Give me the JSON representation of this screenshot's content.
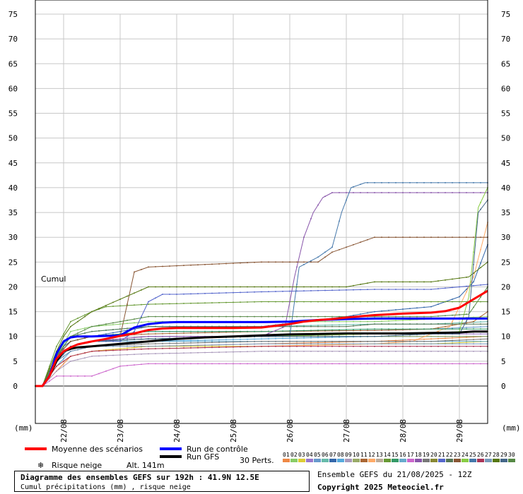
{
  "chart_data": {
    "type": "line",
    "title": "Diagramme des ensembles GEFS sur 192h : 41.9N 12.5E",
    "subtitle": "Cumul précipitations (mm) , risque neige",
    "axis_caption": "Cumul",
    "ylabel": "(mm)",
    "ylim": [
      0,
      75
    ],
    "yticks": [
      0,
      5,
      10,
      15,
      20,
      25,
      30,
      35,
      40,
      45,
      50,
      55,
      60,
      65,
      70,
      75
    ],
    "xrange_hours": [
      0,
      192
    ],
    "xticks": [
      {
        "label": "22/08",
        "hour": 12
      },
      {
        "label": "23/08",
        "hour": 36
      },
      {
        "label": "24/08",
        "hour": 60
      },
      {
        "label": "25/08",
        "hour": 84
      },
      {
        "label": "26/08",
        "hour": 108
      },
      {
        "label": "27/08",
        "hour": 132
      },
      {
        "label": "28/08",
        "hour": 156
      },
      {
        "label": "29/08",
        "hour": 180
      }
    ],
    "grid": true,
    "legend": {
      "mean": "Moyenne des scénarios",
      "control": "Run de contrôle",
      "gfs": "Run GFS",
      "snow": "Risque neige",
      "altitude": "Alt. 141m",
      "perts": "30 Perts."
    },
    "mean_color": "#ff0000",
    "control_color": "#0000ff",
    "gfs_color": "#000000",
    "series": [
      {
        "name": "Moyenne des scénarios",
        "x": [
          0,
          3,
          6,
          9,
          12,
          15,
          18,
          24,
          30,
          36,
          42,
          48,
          54,
          60,
          72,
          84,
          96,
          108,
          114,
          120,
          126,
          132,
          144,
          156,
          168,
          174,
          180,
          186,
          192
        ],
        "values": [
          0,
          0,
          2,
          5.5,
          7,
          7.8,
          8.4,
          9,
          9.5,
          10.1,
          10.6,
          11.3,
          11.6,
          11.7,
          11.7,
          11.7,
          11.8,
          12.5,
          13,
          13.3,
          13.5,
          13.8,
          14.3,
          14.6,
          14.8,
          15.1,
          15.8,
          17.5,
          19.2
        ]
      },
      {
        "name": "Run de contrôle",
        "x": [
          0,
          3,
          6,
          9,
          12,
          15,
          18,
          24,
          36,
          42,
          48,
          54,
          60,
          72,
          84,
          96,
          108,
          120,
          132,
          144,
          156,
          168,
          180,
          192
        ],
        "values": [
          0,
          0,
          2,
          6.5,
          9,
          9.8,
          10,
          10,
          10.2,
          11.8,
          12.5,
          12.8,
          12.9,
          12.9,
          12.9,
          12.9,
          13,
          13.3,
          13.5,
          13.6,
          13.6,
          13.6,
          13.6,
          13.6
        ]
      },
      {
        "name": "Run GFS",
        "x": [
          0,
          3,
          6,
          9,
          12,
          15,
          18,
          24,
          36,
          48,
          60,
          72,
          84,
          96,
          108,
          120,
          132,
          144,
          156,
          168,
          180,
          186,
          192
        ],
        "values": [
          0,
          0,
          2,
          5,
          7,
          7.5,
          7.8,
          8,
          8.5,
          9,
          9.5,
          9.8,
          10,
          10.2,
          10.4,
          10.5,
          10.6,
          10.6,
          10.6,
          10.7,
          10.8,
          11,
          11
        ]
      },
      {
        "color": "#ee8844",
        "x": [
          0,
          3,
          9,
          15,
          24,
          48,
          96,
          144,
          168,
          192
        ],
        "values": [
          0,
          0,
          3,
          6,
          7,
          8,
          8.5,
          9,
          9.5,
          10
        ]
      },
      {
        "color": "#88cc66",
        "x": [
          0,
          3,
          9,
          15,
          24,
          48,
          96,
          144,
          168,
          192
        ],
        "values": [
          0,
          0,
          6,
          11,
          12,
          13,
          13,
          13,
          13.5,
          14
        ]
      },
      {
        "color": "#ddcc33",
        "x": [
          0,
          3,
          9,
          15,
          24,
          48,
          96,
          144,
          168,
          192
        ],
        "values": [
          0,
          0,
          4,
          6,
          7,
          8,
          8,
          8.5,
          8.5,
          9
        ]
      },
      {
        "color": "#9977cc",
        "x": [
          0,
          3,
          9,
          15,
          24,
          48,
          96,
          144,
          168,
          192
        ],
        "values": [
          0,
          0,
          5,
          8,
          9,
          10,
          10,
          10.5,
          10.5,
          10.5
        ]
      },
      {
        "color": "#6699cc",
        "x": [
          0,
          3,
          9,
          15,
          24,
          48,
          96,
          144,
          168,
          192
        ],
        "values": [
          0,
          0,
          6,
          9,
          10,
          11,
          11,
          11.2,
          11.5,
          12
        ]
      },
      {
        "color": "#66bbaa",
        "x": [
          0,
          3,
          9,
          15,
          24,
          48,
          96,
          144,
          168,
          192
        ],
        "values": [
          0,
          0,
          7,
          10,
          11,
          12,
          12,
          12.5,
          12.5,
          13
        ]
      },
      {
        "color": "#3366aa",
        "x": [
          0,
          3,
          9,
          12,
          15,
          24,
          48,
          96,
          132,
          144,
          156,
          168,
          180,
          186,
          192
        ],
        "values": [
          0,
          0,
          5,
          8,
          9,
          10,
          12,
          12,
          14,
          15,
          15.5,
          16,
          18,
          21,
          28.5
        ]
      },
      {
        "color": "#55aadd",
        "x": [
          0,
          3,
          9,
          15,
          24,
          48,
          96,
          144,
          168,
          192
        ],
        "values": [
          0,
          0,
          4,
          7,
          8,
          9,
          9.5,
          10,
          10,
          10
        ]
      },
      {
        "color": "#aa99bb",
        "x": [
          0,
          3,
          9,
          15,
          24,
          48,
          96,
          144,
          168,
          192
        ],
        "values": [
          0,
          0,
          3,
          5,
          6,
          6.5,
          7,
          7,
          7,
          7
        ]
      },
      {
        "color": "#99aa66",
        "x": [
          0,
          3,
          9,
          15,
          24,
          48,
          96,
          144,
          168,
          192
        ],
        "values": [
          0,
          0,
          5,
          8,
          9,
          9.5,
          10,
          10,
          10,
          10
        ]
      },
      {
        "color": "#aa6633",
        "x": [
          0,
          3,
          9,
          15,
          24,
          48,
          96,
          144,
          168,
          186,
          192
        ],
        "values": [
          0,
          0,
          6,
          9,
          10,
          10.5,
          11,
          11.2,
          11.5,
          13,
          15
        ]
      },
      {
        "color": "#ffaa66",
        "x": [
          0,
          3,
          9,
          15,
          24,
          48,
          96,
          144,
          160,
          176,
          186,
          192
        ],
        "values": [
          0,
          0,
          4,
          6,
          7,
          7.5,
          8,
          8.5,
          9,
          12,
          22,
          33
        ]
      },
      {
        "color": "#bbaa99",
        "x": [
          0,
          3,
          9,
          15,
          24,
          48,
          96,
          144,
          168,
          192
        ],
        "values": [
          0,
          0,
          5,
          8,
          9,
          9.5,
          10,
          10.5,
          10.5,
          11
        ]
      },
      {
        "color": "#669933",
        "x": [
          0,
          3,
          9,
          15,
          24,
          30,
          48,
          96,
          144,
          168,
          180,
          192
        ],
        "values": [
          0,
          0,
          8,
          13,
          15,
          16,
          16.5,
          17,
          17,
          17,
          17,
          17
        ]
      },
      {
        "color": "#339966",
        "x": [
          0,
          3,
          9,
          15,
          24,
          48,
          96,
          144,
          168,
          192
        ],
        "values": [
          0,
          0,
          6,
          9,
          10,
          11,
          11,
          11.5,
          11.5,
          11.5
        ]
      },
      {
        "color": "#66aacc",
        "x": [
          0,
          3,
          9,
          15,
          24,
          48,
          96,
          144,
          168,
          192
        ],
        "values": [
          0,
          0,
          5,
          8,
          9,
          9,
          9,
          9,
          9,
          9
        ]
      },
      {
        "color": "#cc66cc",
        "x": [
          0,
          3,
          9,
          15,
          24,
          30,
          36,
          48,
          96,
          144,
          168,
          192
        ],
        "values": [
          0,
          0,
          2,
          2,
          2,
          3,
          4,
          4.5,
          4.5,
          4.5,
          4.5,
          4.5
        ]
      },
      {
        "color": "#8855aa",
        "x": [
          0,
          3,
          9,
          15,
          24,
          48,
          96,
          106,
          110,
          114,
          118,
          122,
          126,
          192
        ],
        "values": [
          0,
          0,
          6,
          8,
          9,
          10,
          10,
          12,
          22,
          30,
          35,
          38,
          39,
          39
        ]
      },
      {
        "color": "#777777",
        "x": [
          0,
          3,
          9,
          15,
          24,
          48,
          96,
          144,
          168,
          192
        ],
        "values": [
          0,
          0,
          5,
          7,
          8,
          8.5,
          9,
          9,
          9,
          9.5
        ]
      },
      {
        "color": "#888833",
        "x": [
          0,
          3,
          9,
          15,
          24,
          48,
          96,
          144,
          168,
          192
        ],
        "values": [
          0,
          0,
          5,
          8,
          9,
          9.5,
          10,
          10.5,
          10.5,
          11
        ]
      },
      {
        "color": "#5566cc",
        "x": [
          0,
          3,
          9,
          15,
          24,
          36,
          42,
          48,
          54,
          60,
          96,
          144,
          168,
          192
        ],
        "values": [
          0,
          0,
          5,
          8,
          9,
          9,
          11,
          17,
          18.5,
          18.5,
          19,
          19.5,
          19.5,
          20.5
        ]
      },
      {
        "color": "#557755",
        "x": [
          0,
          3,
          9,
          15,
          24,
          48,
          96,
          132,
          144,
          168,
          192
        ],
        "values": [
          0,
          0,
          6,
          10,
          11,
          12,
          12,
          12,
          12.5,
          12.5,
          12.5
        ]
      },
      {
        "color": "#885533",
        "x": [
          0,
          3,
          9,
          15,
          24,
          36,
          42,
          48,
          72,
          96,
          120,
          126,
          132,
          144,
          168,
          192
        ],
        "values": [
          0,
          0,
          6,
          9,
          10,
          10,
          23,
          24,
          24.5,
          25,
          25,
          27,
          28,
          30,
          30,
          30
        ]
      },
      {
        "color": "#88cc44",
        "x": [
          0,
          3,
          9,
          15,
          24,
          48,
          96,
          144,
          168,
          180,
          184,
          188,
          192
        ],
        "values": [
          0,
          0,
          5,
          8,
          9,
          9.5,
          10,
          10.5,
          10.5,
          11,
          18,
          36,
          40
        ]
      },
      {
        "color": "#4477aa",
        "x": [
          0,
          3,
          9,
          15,
          24,
          48,
          96,
          108,
          112,
          120,
          126,
          130,
          134,
          140,
          192
        ],
        "values": [
          0,
          0,
          5,
          8,
          9,
          9.5,
          10,
          10,
          24,
          26,
          28,
          35,
          40,
          41,
          41
        ]
      },
      {
        "color": "#aa3355",
        "x": [
          0,
          3,
          9,
          15,
          24,
          48,
          96,
          144,
          168,
          192
        ],
        "values": [
          0,
          0,
          4,
          6,
          7,
          7.5,
          8,
          8,
          8,
          8
        ]
      },
      {
        "color": "#7799bb",
        "x": [
          0,
          3,
          9,
          15,
          24,
          48,
          96,
          144,
          168,
          192
        ],
        "values": [
          0,
          0,
          5,
          7,
          8,
          8,
          8.5,
          8.5,
          8.5,
          8.5
        ]
      },
      {
        "color": "#557711",
        "x": [
          0,
          3,
          9,
          12,
          15,
          24,
          48,
          96,
          132,
          144,
          168,
          184,
          192
        ],
        "values": [
          0,
          0,
          7,
          10,
          12,
          15,
          20,
          20,
          20,
          21,
          21,
          22,
          25
        ]
      },
      {
        "color": "#446688",
        "x": [
          0,
          3,
          9,
          15,
          24,
          48,
          96,
          144,
          168,
          180,
          184,
          188,
          192
        ],
        "values": [
          0,
          0,
          5,
          8,
          9,
          9.5,
          10,
          10,
          10.5,
          10.5,
          14,
          35,
          37.5
        ]
      },
      {
        "color": "#558844",
        "x": [
          0,
          3,
          9,
          15,
          24,
          36,
          48,
          60,
          96,
          144,
          168,
          184,
          192
        ],
        "values": [
          0,
          0,
          6,
          10,
          12,
          13,
          14,
          14,
          14,
          14,
          14,
          14.5,
          20
        ]
      }
    ]
  },
  "legend_codes": [
    "01",
    "02",
    "03",
    "04",
    "05",
    "06",
    "07",
    "08",
    "09",
    "10",
    "11",
    "12",
    "13",
    "14",
    "15",
    "16",
    "17",
    "18",
    "19",
    "20",
    "21",
    "22",
    "23",
    "24",
    "25",
    "26",
    "27",
    "28",
    "29",
    "30"
  ],
  "legend_colors": [
    "#ee8844",
    "#88cc66",
    "#ddcc33",
    "#9977cc",
    "#6699cc",
    "#66bbaa",
    "#3366aa",
    "#55aadd",
    "#aa99bb",
    "#99aa66",
    "#aa6633",
    "#ffaa66",
    "#bbaa99",
    "#669933",
    "#339966",
    "#66aacc",
    "#cc66cc",
    "#8855aa",
    "#777777",
    "#888833",
    "#5566cc",
    "#557755",
    "#885533",
    "#88cc44",
    "#4477aa",
    "#aa3355",
    "#7799bb",
    "#557711",
    "#446688",
    "#558844"
  ],
  "footer": {
    "title": "Diagramme des ensembles GEFS sur 192h : 41.9N 12.5E",
    "subtitle": "Cumul précipitations (mm) , risque neige",
    "ensemble": "Ensemble GEFS du 21/08/2025 - 12Z",
    "copyright": "Copyright 2025 Meteociel.fr"
  }
}
